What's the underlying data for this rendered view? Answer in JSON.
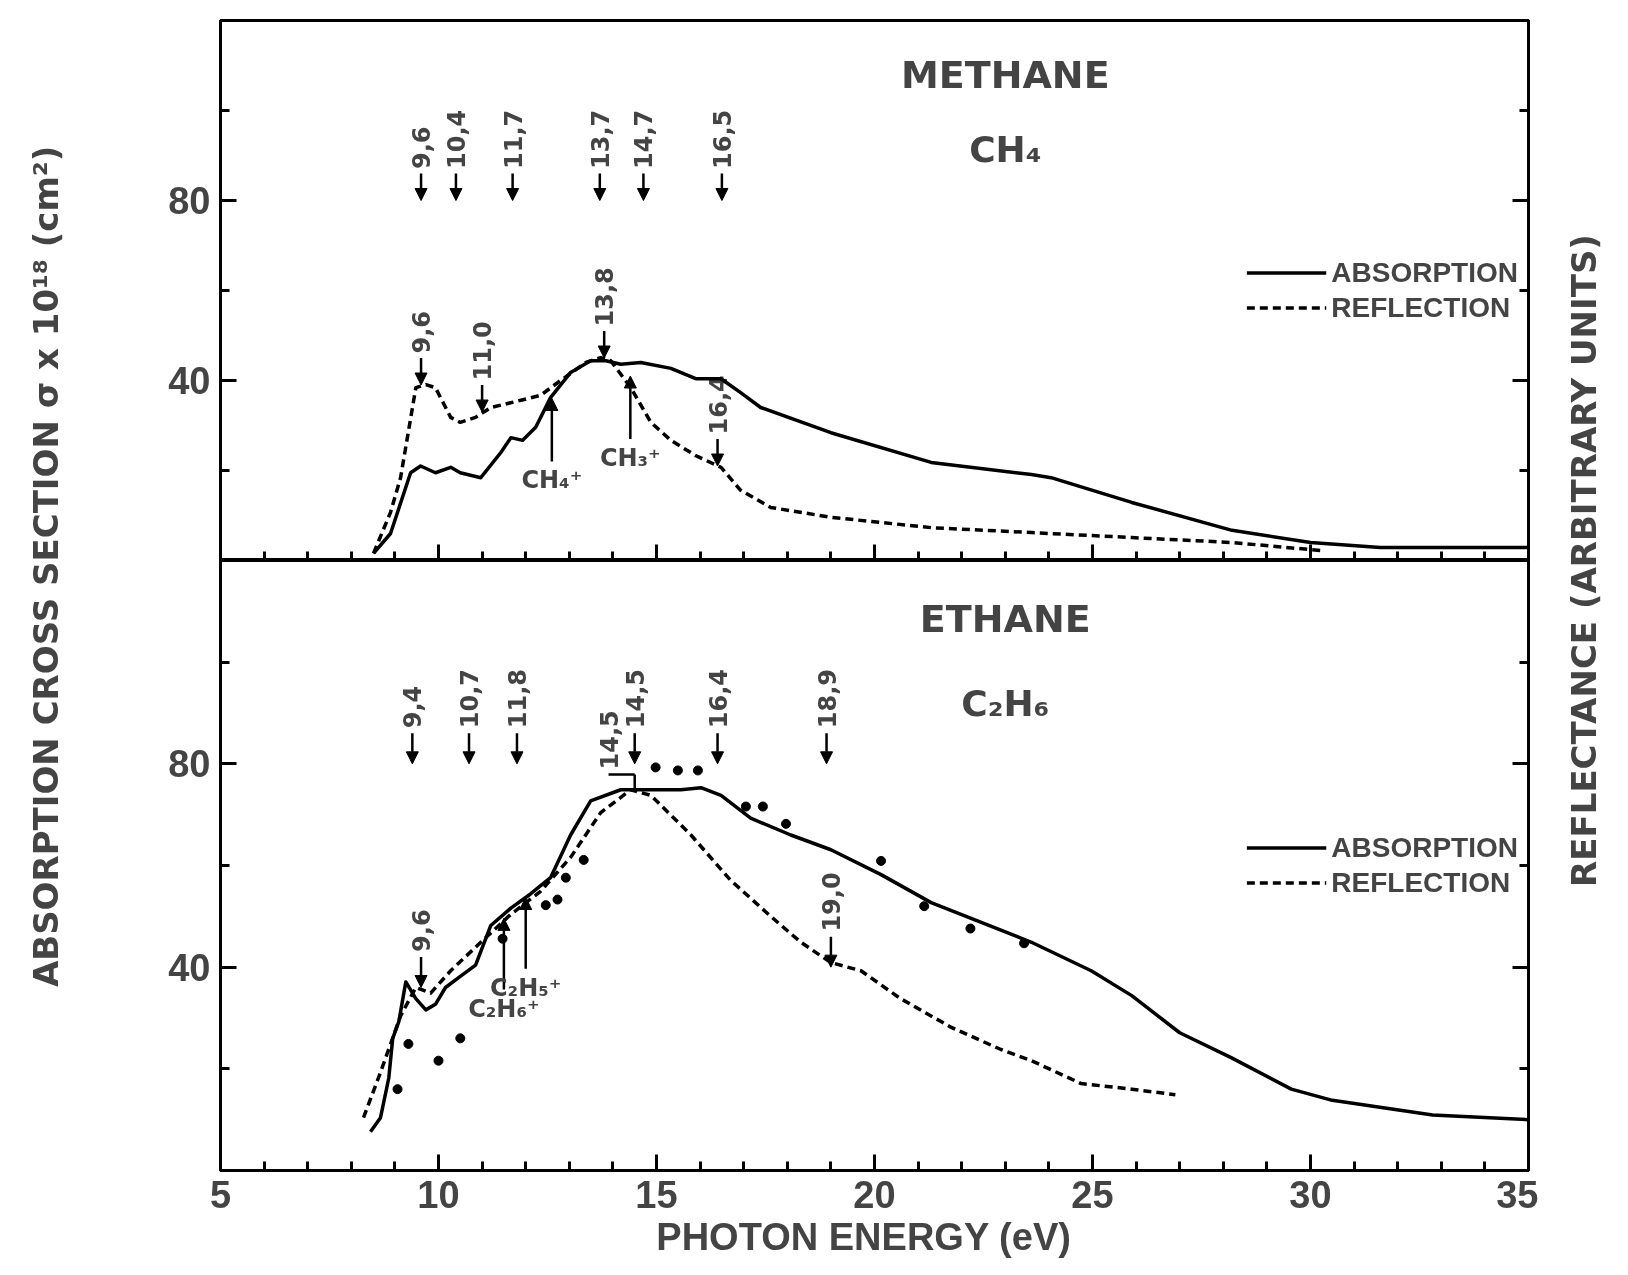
{
  "chart_data": [
    {
      "type": "line",
      "title": "METHANE",
      "subtitle": "CH₄",
      "ylabel": "ABSORPTION CROSS SECTION  σ x 10¹⁸ (cm²)",
      "y2label": "REFLECTANCE (ARBITRARY UNITS)",
      "xlim": [
        5,
        35
      ],
      "ylim": [
        0,
        120
      ],
      "xticks": [
        5,
        {
          "value": 6,
          "label": null
        },
        {
          "value": 7,
          "label": null
        },
        {
          "value": 8,
          "label": null
        },
        {
          "value": 9,
          "label": null
        },
        10,
        {
          "value": 11,
          "label": null
        },
        {
          "value": 12,
          "label": null
        },
        {
          "value": 13,
          "label": null
        },
        {
          "value": 14,
          "label": null
        },
        15,
        {
          "value": 16,
          "label": null
        },
        {
          "value": 17,
          "label": null
        },
        {
          "value": 18,
          "label": null
        },
        {
          "value": 19,
          "label": null
        },
        20,
        {
          "value": 21,
          "label": null
        },
        {
          "value": 22,
          "label": null
        },
        {
          "value": 23,
          "label": null
        },
        {
          "value": 24,
          "label": null
        },
        25,
        {
          "value": 26,
          "label": null
        },
        {
          "value": 27,
          "label": null
        },
        {
          "value": 28,
          "label": null
        },
        {
          "value": 29,
          "label": null
        },
        30,
        {
          "value": 31,
          "label": null
        },
        {
          "value": 32,
          "label": null
        },
        {
          "value": 33,
          "label": null
        },
        {
          "value": 34,
          "label": null
        },
        35
      ],
      "yticks": [
        {
          "value": 0,
          "label": null
        },
        {
          "value": 20,
          "label": null
        },
        40,
        {
          "value": 60,
          "label": null
        },
        80,
        {
          "value": 100,
          "label": null
        }
      ],
      "tick_labels": "y",
      "legend": "right",
      "series": [
        {
          "name": "ABSORPTION",
          "color": "#000000",
          "line_style": "solid",
          "x": [
            8.51,
            8.9,
            9.36,
            9.59,
            9.93,
            10.28,
            10.5,
            10.97,
            11.43,
            11.66,
            11.93,
            12.23,
            12.57,
            13.03,
            13.49,
            13.84,
            14.18,
            14.64,
            15.33,
            15.9,
            16.48,
            16.93,
            17.39,
            19.0,
            21.3,
            23.6,
            24.05,
            25.9,
            28.2,
            30.0,
            31.6,
            35.0
          ],
          "values": [
            1.6,
            6,
            19.5,
            21,
            19.5,
            20.7,
            19.5,
            18.4,
            24,
            27.3,
            26.7,
            29.6,
            36.2,
            41.8,
            44.4,
            44.4,
            43.6,
            44,
            42.7,
            40.4,
            40.4,
            37.3,
            34,
            28.4,
            21.8,
            19.1,
            18.4,
            12.9,
            6.7,
            4,
            2.9,
            2.9
          ]
        },
        {
          "name": "REFLECTION",
          "color": "#000000",
          "line_style": "dashed",
          "x": [
            8.51,
            8.9,
            9.13,
            9.48,
            9.71,
            9.93,
            10.28,
            10.5,
            10.85,
            11.2,
            11.89,
            12.34,
            12.8,
            13.38,
            13.72,
            13.95,
            14.41,
            14.87,
            15.33,
            15.9,
            16.48,
            16.93,
            17.62,
            19.0,
            21.3,
            23.6,
            25.9,
            28.2,
            30.25
          ],
          "values": [
            1.6,
            10.7,
            18.4,
            38.4,
            39.1,
            38.4,
            31.8,
            30.7,
            31.8,
            34,
            35.6,
            36.7,
            40,
            44,
            45.1,
            44.4,
            38.4,
            30.7,
            26.7,
            23.3,
            20.7,
            15.6,
            11.8,
            9.6,
            7.3,
            6.2,
            5.1,
            4,
            2.2
          ]
        }
      ],
      "annotations": [
        "9,6",
        "10,4",
        "11,7",
        "13,7",
        "14,7",
        "16,5",
        {
          "text": "9,6",
          "x": 9.6,
          "y": 39
        },
        {
          "text": "11,0",
          "x": 11.0,
          "y": 33
        },
        {
          "text": "13,8",
          "x": 13.8,
          "y": 45
        },
        {
          "text": "16,4",
          "x": 16.4,
          "y": 21
        },
        {
          "text": "CH₄⁺",
          "x": 12.6,
          "y": 36
        },
        {
          "text": "CH₃⁺",
          "x": 14.4,
          "y": 41
        }
      ]
    },
    {
      "type": "line",
      "title": "ETHANE",
      "subtitle": "C₂H₆",
      "xlabel": "PHOTON  ENERGY  (eV)",
      "xlim": [
        5,
        35
      ],
      "ylim": [
        0,
        120
      ],
      "xticks": [
        5,
        {
          "value": 6,
          "label": null
        },
        {
          "value": 7,
          "label": null
        },
        {
          "value": 8,
          "label": null
        },
        {
          "value": 9,
          "label": null
        },
        10,
        {
          "value": 11,
          "label": null
        },
        {
          "value": 12,
          "label": null
        },
        {
          "value": 13,
          "label": null
        },
        {
          "value": 14,
          "label": null
        },
        15,
        {
          "value": 16,
          "label": null
        },
        {
          "value": 17,
          "label": null
        },
        {
          "value": 18,
          "label": null
        },
        {
          "value": 19,
          "label": null
        },
        20,
        {
          "value": 21,
          "label": null
        },
        {
          "value": 22,
          "label": null
        },
        {
          "value": 23,
          "label": null
        },
        {
          "value": 24,
          "label": null
        },
        25,
        {
          "value": 26,
          "label": null
        },
        {
          "value": 27,
          "label": null
        },
        {
          "value": 28,
          "label": null
        },
        {
          "value": 29,
          "label": null
        },
        30,
        {
          "value": 31,
          "label": null
        },
        {
          "value": 32,
          "label": null
        },
        {
          "value": 33,
          "label": null
        },
        {
          "value": 34,
          "label": null
        },
        35
      ],
      "yticks": [
        {
          "value": 0,
          "label": null
        },
        {
          "value": 20,
          "label": null
        },
        40,
        {
          "value": 60,
          "label": null
        },
        80,
        {
          "value": 100,
          "label": null
        }
      ],
      "legend": "right",
      "series": [
        {
          "name": "ABSORPTION",
          "color": "#000000",
          "line_style": "solid",
          "x": [
            8.44,
            8.67,
            8.86,
            8.95,
            9.09,
            9.25,
            9.48,
            9.71,
            9.93,
            10.16,
            10.5,
            10.85,
            11.2,
            11.66,
            12.11,
            12.57,
            13.03,
            13.49,
            14.18,
            14.87,
            15.56,
            16.02,
            16.48,
            17.16,
            18.08,
            19.0,
            20.15,
            21.3,
            23.6,
            24.97,
            25.9,
            27.0,
            28.18,
            29.56,
            30.5,
            32.8,
            35.0
          ],
          "values": [
            7.6,
            10.4,
            18.2,
            26,
            29.3,
            37.1,
            33.8,
            31.6,
            32.7,
            36,
            38.2,
            40.4,
            48.2,
            51.6,
            54.4,
            57.6,
            66,
            72.7,
            74.9,
            74.9,
            74.9,
            75.3,
            73.8,
            69.3,
            66,
            63.1,
            58.2,
            52.7,
            44.9,
            39.3,
            34.4,
            27.1,
            22.2,
            16,
            13.8,
            10.9,
            10
          ]
        },
        {
          "name": "REFLECTION",
          "color": "#000000",
          "line_style": "dashed",
          "x": [
            8.28,
            8.67,
            9.13,
            9.48,
            9.82,
            10.28,
            10.97,
            11.66,
            12.34,
            13.03,
            13.72,
            14.41,
            14.87,
            15.79,
            16.7,
            17.62,
            18.31,
            19.0,
            19.69,
            20.6,
            21.75,
            22.9,
            23.6,
            24.74,
            25.9,
            26.9
          ],
          "values": [
            10.4,
            19.3,
            30.4,
            36,
            34.9,
            39.3,
            44.9,
            50.4,
            54.9,
            61.6,
            70.4,
            74.9,
            73.8,
            66,
            57.1,
            50,
            44.9,
            40.9,
            39.3,
            33.8,
            28.2,
            23.8,
            21.6,
            17.1,
            16,
            14.9
          ]
        },
        {
          "type": "scatter",
          "marker": "circle",
          "color": "#000000",
          "x": [
            9.06,
            9.31,
            10.0,
            10.5,
            11.47,
            12.46,
            12.73,
            12.92,
            13.33,
            14.98,
            15.49,
            15.95,
            17.05,
            17.44,
            17.97,
            20.15,
            21.14,
            22.2,
            23.43
          ],
          "values": [
            16,
            24.9,
            21.6,
            26,
            45.6,
            52.2,
            53.3,
            57.6,
            61.1,
            79.3,
            78.7,
            78.7,
            71.6,
            71.6,
            68.2,
            60.9,
            52,
            47.6,
            44.7
          ]
        }
      ],
      "annotations": [
        "9,4",
        "10,7",
        "11,8",
        "14,5",
        "16,4",
        "18,9",
        {
          "text": "14,5",
          "x": 14.5,
          "y": 74.9
        },
        {
          "text": "9,6",
          "x": 9.6,
          "y": 36
        },
        {
          "text": "19,0",
          "x": 19.0,
          "y": 40
        },
        {
          "text": "C₂H₆⁺",
          "x": 11.5,
          "y": 49.6
        },
        {
          "text": "C₂H₅⁺",
          "x": 12.0,
          "y": 53.7
        }
      ]
    }
  ]
}
